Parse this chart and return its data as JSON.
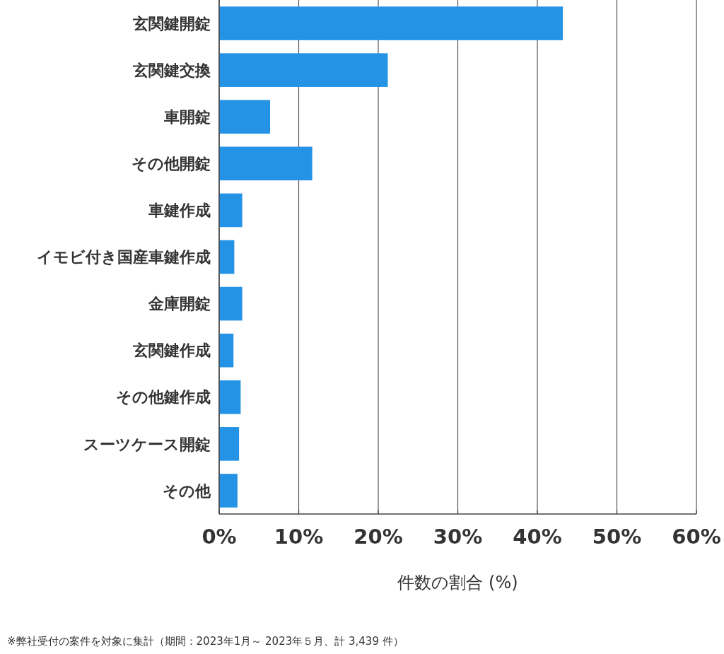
{
  "chart_data": {
    "type": "bar",
    "orientation": "horizontal",
    "categories": [
      "玄関鍵開錠",
      "玄関鍵交換",
      "車開錠",
      "その他開錠",
      "車鍵作成",
      "イモビ付き国産車鍵作成",
      "金庫開錠",
      "玄関鍵作成",
      "その他鍵作成",
      "スーツケース開錠",
      "その他"
    ],
    "values": [
      43.2,
      21.2,
      6.4,
      11.7,
      2.9,
      1.9,
      2.9,
      1.8,
      2.7,
      2.5,
      2.3
    ],
    "color": "#2493e5",
    "xlim": [
      0,
      60
    ],
    "xticks": [
      {
        "value": 0,
        "label": "0%"
      },
      {
        "value": 10,
        "label": "10%"
      },
      {
        "value": 20,
        "label": "20%"
      },
      {
        "value": 30,
        "label": "30%"
      },
      {
        "value": 40,
        "label": "40%"
      },
      {
        "value": 50,
        "label": "50%"
      },
      {
        "value": 60,
        "label": "60%"
      }
    ],
    "xlabel": "件数の割合 (%)",
    "grid": "x",
    "annotations": [
      "※弊社受付の案件を対象に集計（期間：2023年1月～ 2023年５月、計 3,439 件）"
    ]
  }
}
